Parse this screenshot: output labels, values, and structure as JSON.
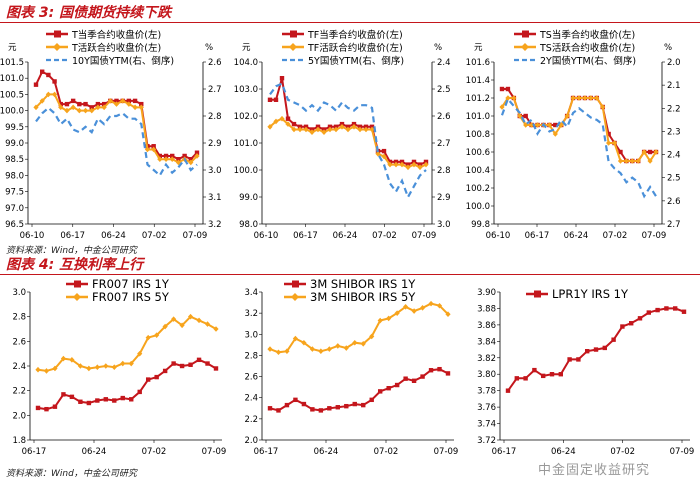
{
  "fig3": {
    "title": "图表 3:  国债期货持续下跌",
    "source": "资料来源：Wind，中金公司研究"
  },
  "fig4": {
    "title": "图表 4:  互换利率上行",
    "source": "资料来源：Wind，中金公司研究"
  },
  "watermark": "中金固定收益研究",
  "colors": {
    "red": "#c4161c",
    "orange": "#f7a41d",
    "blue": "#4a90d9",
    "title": "#c4161c"
  },
  "chart_data": [
    {
      "id": "c1",
      "type": "line",
      "left_unit": "元",
      "right_unit": "%",
      "ylim": [
        96.5,
        101.5
      ],
      "yticks": [
        "96.5",
        "97.0",
        "97.5",
        "98.0",
        "98.5",
        "99.0",
        "99.5",
        "100.0",
        "100.5",
        "101.0",
        "101.5"
      ],
      "y2lim": [
        2.6,
        3.2
      ],
      "y2ticks": [
        "2.6",
        "2.7",
        "2.8",
        "2.9",
        "3.0",
        "3.1",
        "3.2"
      ],
      "y2_inverted": true,
      "xticks": [
        "06-10",
        "06-17",
        "06-24",
        "07-02",
        "07-09"
      ],
      "series": [
        {
          "name": "T当季合约收盘价(左)",
          "axis": "left",
          "color": "red",
          "marker": "square",
          "values": [
            100.8,
            101.2,
            101.1,
            100.9,
            100.2,
            100.2,
            100.3,
            100.2,
            100.2,
            100.1,
            100.2,
            100.2,
            100.3,
            100.3,
            100.3,
            100.3,
            100.3,
            100.2,
            98.9,
            98.9,
            98.6,
            98.6,
            98.6,
            98.5,
            98.6,
            98.5,
            98.7
          ]
        },
        {
          "name": "T活跃合约收盘价(左)",
          "axis": "left",
          "color": "orange",
          "marker": "diamond",
          "values": [
            100.1,
            100.3,
            100.5,
            100.5,
            100.1,
            100.0,
            100.1,
            100.0,
            100.0,
            100.0,
            100.1,
            100.1,
            100.3,
            100.2,
            100.3,
            100.2,
            100.1,
            100.1,
            98.8,
            98.8,
            98.5,
            98.5,
            98.5,
            98.4,
            98.5,
            98.4,
            98.6
          ]
        },
        {
          "name": "10Y国债YTM(右、倒序)",
          "axis": "right",
          "color": "blue",
          "dashed": true,
          "values": [
            2.82,
            2.79,
            2.77,
            2.79,
            2.83,
            2.81,
            2.85,
            2.86,
            2.84,
            2.86,
            2.81,
            2.83,
            2.8,
            2.8,
            2.79,
            2.81,
            2.81,
            2.83,
            2.98,
            3.0,
            3.02,
            2.98,
            3.01,
            2.99,
            2.96,
            3.0,
            2.98
          ]
        }
      ]
    },
    {
      "id": "c2",
      "type": "line",
      "left_unit": "元",
      "right_unit": "%",
      "ylim": [
        98.0,
        104.0
      ],
      "yticks": [
        "98.0",
        "99.0",
        "100.0",
        "101.0",
        "102.0",
        "103.0",
        "104.0"
      ],
      "y2lim": [
        2.4,
        3.0
      ],
      "y2ticks": [
        "2.4",
        "2.5",
        "2.6",
        "2.7",
        "2.8",
        "2.9",
        "3.0"
      ],
      "y2_inverted": true,
      "xticks": [
        "06-10",
        "06-17",
        "06-24",
        "07-02",
        "07-09"
      ],
      "series": [
        {
          "name": "TF当季合约收盘价(左)",
          "axis": "left",
          "color": "red",
          "marker": "square",
          "values": [
            102.6,
            102.6,
            103.4,
            101.9,
            101.7,
            101.6,
            101.6,
            101.5,
            101.6,
            101.5,
            101.6,
            101.6,
            101.7,
            101.6,
            101.7,
            101.6,
            101.6,
            101.6,
            100.7,
            100.7,
            100.3,
            100.3,
            100.3,
            100.2,
            100.3,
            100.2,
            100.3
          ]
        },
        {
          "name": "TF活跃合约收盘价(左)",
          "axis": "left",
          "color": "orange",
          "marker": "diamond",
          "values": [
            101.6,
            101.8,
            101.9,
            101.7,
            101.5,
            101.5,
            101.5,
            101.4,
            101.5,
            101.4,
            101.5,
            101.5,
            101.6,
            101.5,
            101.6,
            101.5,
            101.5,
            101.5,
            100.6,
            100.5,
            100.2,
            100.2,
            100.2,
            100.1,
            100.2,
            100.1,
            100.2
          ]
        },
        {
          "name": "5Y国债YTM(右、倒序)",
          "axis": "right",
          "color": "blue",
          "dashed": true,
          "values": [
            2.52,
            2.49,
            2.48,
            2.54,
            2.55,
            2.56,
            2.58,
            2.56,
            2.58,
            2.55,
            2.56,
            2.58,
            2.55,
            2.57,
            2.58,
            2.56,
            2.56,
            2.57,
            2.74,
            2.78,
            2.85,
            2.88,
            2.84,
            2.9,
            2.86,
            2.82,
            2.8
          ]
        }
      ]
    },
    {
      "id": "c3",
      "type": "line",
      "left_unit": "元",
      "right_unit": "%",
      "ylim": [
        99.8,
        101.6
      ],
      "yticks": [
        "99.8",
        "100.0",
        "100.2",
        "100.4",
        "100.6",
        "100.8",
        "101.0",
        "101.2",
        "101.4",
        "101.6"
      ],
      "y2lim": [
        2.0,
        2.7
      ],
      "y2ticks": [
        "2.0",
        "2.1",
        "2.2",
        "2.3",
        "2.4",
        "2.5",
        "2.6",
        "2.7"
      ],
      "y2_inverted": true,
      "xticks": [
        "06-10",
        "06-17",
        "06-24",
        "07-02",
        "07-09"
      ],
      "series": [
        {
          "name": "TS当季合约收盘价(左)",
          "axis": "left",
          "color": "red",
          "marker": "square",
          "values": [
            101.3,
            101.3,
            101.2,
            101.0,
            101.0,
            100.9,
            100.9,
            100.9,
            100.9,
            100.9,
            100.9,
            101.0,
            101.2,
            101.2,
            101.2,
            101.2,
            101.2,
            101.1,
            100.8,
            100.7,
            100.6,
            100.5,
            100.5,
            100.5,
            100.6,
            100.6,
            100.6
          ]
        },
        {
          "name": "TS活跃合约收盘价(左)",
          "axis": "left",
          "color": "orange",
          "marker": "diamond",
          "values": [
            101.1,
            101.2,
            101.2,
            101.0,
            100.9,
            100.9,
            100.9,
            100.9,
            100.9,
            100.8,
            100.9,
            101.0,
            101.2,
            101.2,
            101.2,
            101.2,
            101.2,
            101.1,
            100.7,
            100.7,
            100.5,
            100.5,
            100.5,
            100.5,
            100.6,
            100.5,
            100.6
          ]
        },
        {
          "name": "2Y国债YTM(右、倒序)",
          "axis": "right",
          "color": "blue",
          "dashed": true,
          "values": [
            2.23,
            2.16,
            2.19,
            2.22,
            2.27,
            2.25,
            2.31,
            2.27,
            2.3,
            2.29,
            2.25,
            2.28,
            2.22,
            2.2,
            2.22,
            2.24,
            2.25,
            2.27,
            2.43,
            2.46,
            2.48,
            2.52,
            2.5,
            2.52,
            2.58,
            2.54,
            2.58
          ]
        }
      ]
    },
    {
      "id": "c4",
      "type": "line",
      "ylim": [
        1.8,
        3.0
      ],
      "yticks": [
        "1.8",
        "2.0",
        "2.2",
        "2.4",
        "2.6",
        "2.8",
        "3.0"
      ],
      "xticks": [
        "06-17",
        "06-24",
        "07-02",
        "07-09"
      ],
      "series": [
        {
          "name": "FR007 IRS 1Y",
          "color": "red",
          "marker": "square",
          "values": [
            2.06,
            2.05,
            2.07,
            2.17,
            2.15,
            2.11,
            2.1,
            2.12,
            2.13,
            2.12,
            2.14,
            2.13,
            2.19,
            2.29,
            2.31,
            2.36,
            2.42,
            2.4,
            2.41,
            2.45,
            2.42,
            2.38
          ]
        },
        {
          "name": "FR007 IRS 5Y",
          "color": "orange",
          "marker": "diamond",
          "values": [
            2.37,
            2.36,
            2.38,
            2.46,
            2.45,
            2.4,
            2.38,
            2.39,
            2.4,
            2.39,
            2.42,
            2.42,
            2.5,
            2.63,
            2.65,
            2.72,
            2.78,
            2.73,
            2.8,
            2.77,
            2.74,
            2.7
          ]
        }
      ]
    },
    {
      "id": "c5",
      "type": "line",
      "ylim": [
        2.0,
        3.4
      ],
      "yticks": [
        "2.0",
        "2.2",
        "2.4",
        "2.6",
        "2.8",
        "3.0",
        "3.2",
        "3.4"
      ],
      "xticks": [
        "06-17",
        "06-24",
        "07-02",
        "07-09"
      ],
      "series": [
        {
          "name": "3M SHIBOR IRS 1Y",
          "color": "red",
          "marker": "square",
          "values": [
            2.3,
            2.28,
            2.33,
            2.38,
            2.34,
            2.29,
            2.28,
            2.3,
            2.31,
            2.32,
            2.34,
            2.33,
            2.38,
            2.46,
            2.49,
            2.52,
            2.58,
            2.56,
            2.6,
            2.66,
            2.67,
            2.63
          ]
        },
        {
          "name": "3M SHIBOR IRS 5Y",
          "color": "orange",
          "marker": "diamond",
          "values": [
            2.86,
            2.83,
            2.84,
            2.96,
            2.92,
            2.86,
            2.84,
            2.86,
            2.89,
            2.87,
            2.92,
            2.91,
            2.98,
            3.13,
            3.15,
            3.2,
            3.26,
            3.22,
            3.25,
            3.29,
            3.27,
            3.19
          ]
        }
      ]
    },
    {
      "id": "c6",
      "type": "line",
      "ylim": [
        3.72,
        3.9
      ],
      "yticks": [
        "3.72",
        "3.74",
        "3.76",
        "3.78",
        "3.80",
        "3.82",
        "3.84",
        "3.86",
        "3.88",
        "3.90"
      ],
      "xticks": [
        "06-17",
        "06-24",
        "07-02",
        "07-09"
      ],
      "series": [
        {
          "name": "LPR1Y IRS 1Y",
          "color": "red",
          "marker": "square",
          "values": [
            3.78,
            3.795,
            3.795,
            3.805,
            3.798,
            3.8,
            3.8,
            3.818,
            3.818,
            3.828,
            3.83,
            3.832,
            3.842,
            3.858,
            3.862,
            3.868,
            3.875,
            3.878,
            3.88,
            3.88,
            3.876
          ]
        }
      ]
    }
  ]
}
